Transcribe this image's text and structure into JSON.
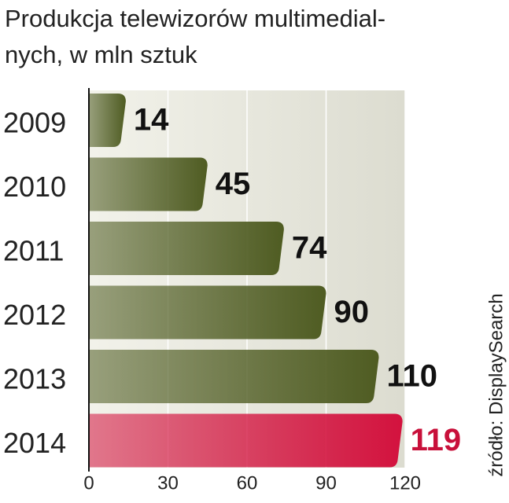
{
  "chart_data": {
    "type": "bar",
    "orientation": "horizontal",
    "title": "Produkcja telewizorów multimedial-",
    "subtitle": "nych, w mln sztuk",
    "source": "źródło: DisplaySearch",
    "categories": [
      "2009",
      "2010",
      "2011",
      "2012",
      "2013",
      "2014"
    ],
    "values": [
      14,
      45,
      74,
      90,
      110,
      119
    ],
    "colors": [
      "#4f5c22",
      "#4f5c22",
      "#4f5c22",
      "#4f5c22",
      "#4f5c22",
      "#d3123e"
    ],
    "label_colors": [
      "#111111",
      "#111111",
      "#111111",
      "#111111",
      "#111111",
      "#c8103a"
    ],
    "xlim": [
      0,
      120
    ],
    "xticks": [
      0,
      30,
      60,
      90,
      120
    ],
    "grid": true
  }
}
